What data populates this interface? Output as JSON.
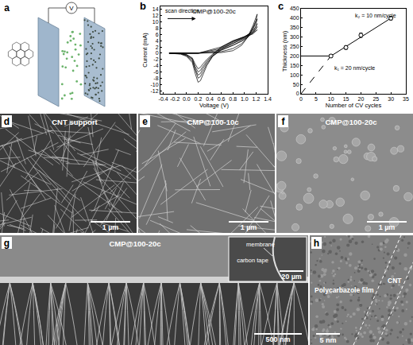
{
  "chart_data": [
    {
      "panel": "b",
      "type": "line",
      "title": "CMP@100-20c",
      "x_label": "Voltage (V)",
      "y_label": "Current (mA)",
      "annotations": [
        "scan direction"
      ],
      "color": "#000000",
      "xlim": [
        -0.45,
        1.4
      ],
      "xticks": [
        -0.4,
        -0.2,
        {
          "value": 0,
          "label": "0.0"
        },
        0.2,
        0.4,
        0.6,
        0.8,
        {
          "value": 1,
          "label": "1.0"
        },
        1.2,
        1.4
      ],
      "ylim": [
        -13,
        15
      ],
      "yticks": [
        -12,
        -10,
        -8,
        -6,
        -4,
        -2,
        0,
        2,
        4,
        6,
        8,
        10,
        12,
        14
      ],
      "series": [
        {
          "x": [
            -0.3,
            0.2,
            0.6,
            0.8,
            0.95,
            1.05,
            1.15,
            1.22,
            1.2,
            1.1,
            1.0,
            0.8,
            0.6,
            0.45,
            0.35,
            0.28,
            0.24,
            0.2,
            0.15,
            0.1,
            0,
            -0.1,
            -0.3
          ],
          "values": [
            0,
            0,
            0.2,
            0.8,
            2.5,
            5,
            9,
            12.5,
            10.5,
            6.5,
            4.5,
            2.5,
            1,
            -1,
            -4,
            -7,
            -8.8,
            -9.3,
            -6.5,
            -3,
            -1,
            -0.3,
            0
          ]
        },
        {
          "x": [
            -0.3,
            0.2,
            0.6,
            0.8,
            0.95,
            1.05,
            1.15,
            1.22,
            1.2,
            1.1,
            1.0,
            0.8,
            0.6,
            0.45,
            0.35,
            0.28,
            0.24,
            0.2,
            0.15,
            0.1,
            0,
            -0.1,
            -0.3
          ],
          "values": [
            0,
            0,
            0.5,
            1.5,
            3,
            5,
            8,
            11,
            9.5,
            6.5,
            5,
            3,
            1.2,
            -1,
            -3.5,
            -6,
            -7.5,
            -8,
            -5.5,
            -2.5,
            -0.8,
            -0.2,
            0
          ]
        },
        {
          "x": [
            -0.3,
            0.2,
            0.6,
            0.8,
            0.95,
            1.05,
            1.15,
            1.22,
            1.2,
            1.1,
            1.0,
            0.8,
            0.6,
            0.45,
            0.35,
            0.28,
            0.24,
            0.2,
            0.15,
            0.1,
            0,
            -0.1,
            -0.3
          ],
          "values": [
            0,
            0,
            1,
            2.5,
            3.8,
            5,
            7,
            9.5,
            8.5,
            6.5,
            5.2,
            3.5,
            1.5,
            -0.8,
            -3,
            -5,
            -6.5,
            -7,
            -5,
            -2,
            -0.6,
            -0.1,
            0
          ]
        },
        {
          "x": [
            -0.3,
            0.2,
            0.6,
            0.8,
            0.95,
            1.05,
            1.15,
            1.22,
            1.2,
            1.1,
            1.0,
            0.8,
            0.6,
            0.45,
            0.35,
            0.28,
            0.24,
            0.2,
            0.15,
            0.1,
            0,
            -0.1,
            -0.3
          ],
          "values": [
            0,
            0,
            1.5,
            3.2,
            4.3,
            5.2,
            6.5,
            8.5,
            7.8,
            6.3,
            5.3,
            3.8,
            1.8,
            -0.5,
            -2.5,
            -4.3,
            -5.5,
            -6,
            -4.3,
            -1.8,
            -0.5,
            -0.1,
            0
          ]
        },
        {
          "x": [
            -0.3,
            0.2,
            0.6,
            0.8,
            0.95,
            1.05,
            1.15,
            1.22,
            1.2,
            1.1,
            1.0,
            0.8,
            0.6,
            0.45,
            0.35,
            0.28,
            0.24,
            0.2,
            0.15,
            0.1,
            0,
            -0.1,
            -0.3
          ],
          "values": [
            0,
            0,
            2,
            3.8,
            4.8,
            5.4,
            6.2,
            7.5,
            7.2,
            6.1,
            5.3,
            4,
            2,
            -0.3,
            -2,
            -3.5,
            -4.5,
            -5,
            -3.5,
            -1.5,
            -0.4,
            -0.1,
            0
          ]
        }
      ]
    },
    {
      "panel": "c",
      "type": "scatter",
      "x_label": "Number of CV cycles",
      "y_label": "Thickness (nm)",
      "annotations": [
        "k₂ = 10 nm/cycle",
        "k₁ = 20 nm/cycle"
      ],
      "color": "#000000",
      "xlim": [
        0,
        35
      ],
      "xticks": [
        0,
        5,
        10,
        15,
        20,
        25,
        30,
        35
      ],
      "ylim": [
        0,
        450
      ],
      "yticks": [
        0,
        50,
        100,
        150,
        200,
        250,
        300,
        350,
        400,
        450
      ],
      "series": [
        {
          "type": "line",
          "line_style": "solid",
          "x": [
            10,
            30
          ],
          "values": [
            200,
            400
          ]
        },
        {
          "type": "line",
          "line_style": "solid",
          "x": [
            0,
            10
          ],
          "values": [
            200,
            200
          ]
        },
        {
          "type": "line",
          "line_style": "dashed",
          "x": [
            0,
            10
          ],
          "values": [
            0,
            200
          ]
        },
        {
          "type": "scatter",
          "marker": "circle",
          "x": [
            10,
            15,
            20,
            30
          ],
          "values": [
            200,
            245,
            310,
            400
          ],
          "errors": [
            8,
            10,
            12,
            10
          ]
        }
      ]
    }
  ],
  "figure": {
    "schematic": {
      "letter": "a",
      "meter_label": "V"
    },
    "micrographs": [
      {
        "letter": "d",
        "label": "CNT support",
        "scale_bar": "1 µm"
      },
      {
        "letter": "e",
        "label": "CMP@100-10c",
        "scale_bar": "1 µm"
      },
      {
        "letter": "f",
        "label": "CMP@100-20c",
        "scale_bar": "1 µm"
      },
      {
        "letter": "g",
        "label": "CMP@100-20c",
        "scale_bar": "500 nm",
        "inset": {
          "labels": [
            "membrane",
            "carbon tape"
          ],
          "scale_bar": "20 µm"
        }
      },
      {
        "letter": "h",
        "labels": [
          "Polycarbazole film",
          "CNT"
        ],
        "scale_bar": "5 nm"
      }
    ]
  }
}
